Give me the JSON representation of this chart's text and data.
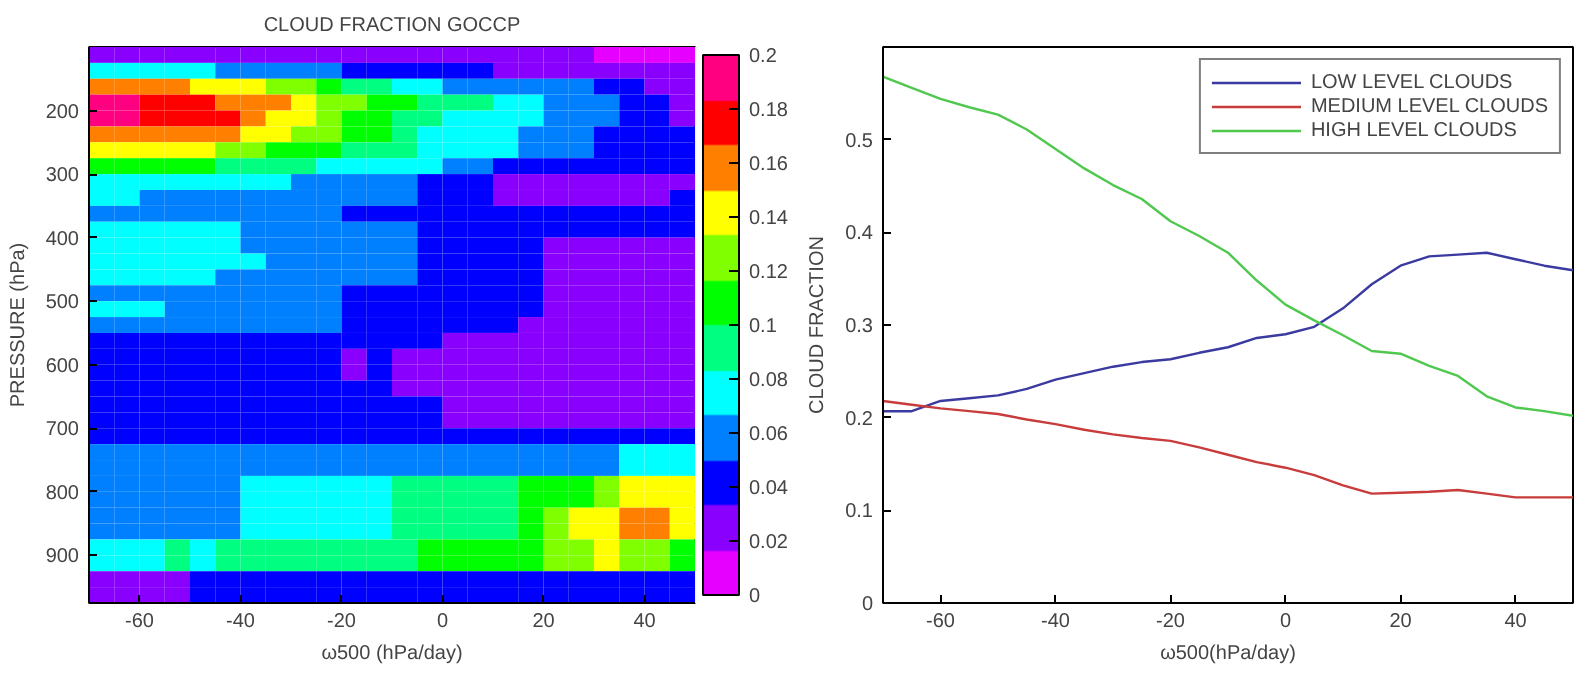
{
  "chart_data": [
    {
      "type": "heatmap",
      "title": "CLOUD FRACTION GOCCP",
      "xlabel": "ω500 (hPa/day)",
      "ylabel": "PRESSURE (hPa)",
      "xlim": [
        -70,
        50
      ],
      "ylim": [
        975,
        100
      ],
      "xticks": [
        -60,
        -40,
        -20,
        0,
        20,
        40
      ],
      "yticks": [
        200,
        300,
        400,
        500,
        600,
        700,
        800,
        900
      ],
      "clim": [
        0,
        0.2
      ],
      "cticks": [
        0,
        0.02,
        0.04,
        0.06,
        0.08,
        0.1,
        0.12,
        0.14,
        0.16,
        0.18,
        0.2
      ],
      "colors": [
        "#e600ff",
        "#8a00ff",
        "#0000ff",
        "#0080ff",
        "#00ffff",
        "#00ff80",
        "#00ff00",
        "#80ff00",
        "#ffff00",
        "#ff8000",
        "#ff0000",
        "#ff0080"
      ],
      "cells": [
        [
          0.025,
          0.025,
          0.025,
          0.025,
          0.025,
          0.025,
          0.025,
          0.025,
          0.025,
          0.025,
          0.025,
          0.025,
          0.025,
          0.025,
          0.025,
          0.025,
          0.025,
          0.025,
          0.025,
          0.025,
          0.01,
          0.01,
          0.01,
          0.01
        ],
        [
          0.075,
          0.075,
          0.075,
          0.075,
          0.075,
          0.06,
          0.06,
          0.06,
          0.06,
          0.06,
          0.04,
          0.04,
          0.04,
          0.04,
          0.04,
          0.04,
          0.025,
          0.025,
          0.025,
          0.025,
          0.025,
          0.025,
          0.025,
          0.025
        ],
        [
          0.16,
          0.16,
          0.16,
          0.16,
          0.14,
          0.14,
          0.14,
          0.125,
          0.125,
          0.11,
          0.09,
          0.09,
          0.075,
          0.075,
          0.06,
          0.06,
          0.06,
          0.06,
          0.06,
          0.06,
          0.04,
          0.04,
          0.025,
          0.025
        ],
        [
          0.19,
          0.19,
          0.175,
          0.175,
          0.175,
          0.16,
          0.16,
          0.16,
          0.14,
          0.125,
          0.125,
          0.11,
          0.11,
          0.09,
          0.09,
          0.09,
          0.075,
          0.075,
          0.06,
          0.06,
          0.06,
          0.04,
          0.04,
          0.025
        ],
        [
          0.19,
          0.19,
          0.175,
          0.175,
          0.175,
          0.175,
          0.16,
          0.14,
          0.14,
          0.125,
          0.11,
          0.11,
          0.09,
          0.09,
          0.075,
          0.075,
          0.075,
          0.075,
          0.06,
          0.06,
          0.06,
          0.04,
          0.04,
          0.025
        ],
        [
          0.16,
          0.16,
          0.16,
          0.16,
          0.16,
          0.16,
          0.14,
          0.14,
          0.125,
          0.125,
          0.11,
          0.11,
          0.09,
          0.075,
          0.075,
          0.075,
          0.075,
          0.06,
          0.06,
          0.06,
          0.04,
          0.04,
          0.04,
          0.04
        ],
        [
          0.14,
          0.14,
          0.14,
          0.14,
          0.14,
          0.125,
          0.125,
          0.11,
          0.11,
          0.11,
          0.09,
          0.09,
          0.09,
          0.075,
          0.075,
          0.075,
          0.075,
          0.06,
          0.06,
          0.06,
          0.04,
          0.04,
          0.04,
          0.04
        ],
        [
          0.11,
          0.11,
          0.11,
          0.11,
          0.11,
          0.09,
          0.09,
          0.09,
          0.09,
          0.075,
          0.075,
          0.075,
          0.075,
          0.075,
          0.06,
          0.06,
          0.04,
          0.04,
          0.04,
          0.04,
          0.04,
          0.04,
          0.04,
          0.04
        ],
        [
          0.075,
          0.075,
          0.075,
          0.075,
          0.075,
          0.075,
          0.075,
          0.075,
          0.06,
          0.06,
          0.06,
          0.06,
          0.06,
          0.04,
          0.04,
          0.04,
          0.025,
          0.025,
          0.025,
          0.025,
          0.025,
          0.025,
          0.025,
          0.025
        ],
        [
          0.075,
          0.075,
          0.06,
          0.06,
          0.06,
          0.06,
          0.06,
          0.06,
          0.06,
          0.06,
          0.06,
          0.06,
          0.06,
          0.04,
          0.04,
          0.04,
          0.025,
          0.025,
          0.025,
          0.025,
          0.025,
          0.025,
          0.025,
          0.04
        ],
        [
          0.06,
          0.06,
          0.06,
          0.06,
          0.06,
          0.06,
          0.06,
          0.06,
          0.06,
          0.06,
          0.04,
          0.04,
          0.04,
          0.04,
          0.04,
          0.04,
          0.04,
          0.04,
          0.04,
          0.04,
          0.04,
          0.04,
          0.04,
          0.04
        ],
        [
          0.075,
          0.075,
          0.075,
          0.075,
          0.075,
          0.075,
          0.06,
          0.06,
          0.06,
          0.06,
          0.06,
          0.06,
          0.06,
          0.04,
          0.04,
          0.04,
          0.04,
          0.04,
          0.04,
          0.04,
          0.04,
          0.04,
          0.04,
          0.04
        ],
        [
          0.075,
          0.075,
          0.075,
          0.075,
          0.075,
          0.075,
          0.06,
          0.06,
          0.06,
          0.06,
          0.06,
          0.06,
          0.06,
          0.04,
          0.04,
          0.04,
          0.04,
          0.04,
          0.025,
          0.025,
          0.025,
          0.025,
          0.025,
          0.025
        ],
        [
          0.075,
          0.075,
          0.075,
          0.075,
          0.075,
          0.075,
          0.075,
          0.06,
          0.06,
          0.06,
          0.06,
          0.06,
          0.06,
          0.04,
          0.04,
          0.04,
          0.04,
          0.04,
          0.025,
          0.025,
          0.025,
          0.025,
          0.025,
          0.025
        ],
        [
          0.075,
          0.075,
          0.075,
          0.075,
          0.075,
          0.06,
          0.06,
          0.06,
          0.06,
          0.06,
          0.06,
          0.06,
          0.06,
          0.04,
          0.04,
          0.04,
          0.04,
          0.04,
          0.025,
          0.025,
          0.025,
          0.025,
          0.025,
          0.025
        ],
        [
          0.06,
          0.06,
          0.06,
          0.06,
          0.06,
          0.06,
          0.06,
          0.06,
          0.06,
          0.06,
          0.04,
          0.04,
          0.04,
          0.04,
          0.04,
          0.04,
          0.04,
          0.04,
          0.025,
          0.025,
          0.025,
          0.025,
          0.025,
          0.025
        ],
        [
          0.075,
          0.075,
          0.075,
          0.06,
          0.06,
          0.06,
          0.06,
          0.06,
          0.06,
          0.06,
          0.04,
          0.04,
          0.04,
          0.04,
          0.04,
          0.04,
          0.04,
          0.04,
          0.025,
          0.025,
          0.025,
          0.025,
          0.025,
          0.025
        ],
        [
          0.06,
          0.06,
          0.06,
          0.06,
          0.06,
          0.06,
          0.06,
          0.06,
          0.06,
          0.06,
          0.04,
          0.04,
          0.04,
          0.04,
          0.04,
          0.04,
          0.04,
          0.025,
          0.025,
          0.025,
          0.025,
          0.025,
          0.025,
          0.025
        ],
        [
          0.04,
          0.04,
          0.04,
          0.04,
          0.04,
          0.04,
          0.04,
          0.04,
          0.04,
          0.04,
          0.04,
          0.04,
          0.04,
          0.04,
          0.025,
          0.025,
          0.025,
          0.025,
          0.025,
          0.025,
          0.025,
          0.025,
          0.025,
          0.025
        ],
        [
          0.04,
          0.04,
          0.04,
          0.04,
          0.04,
          0.04,
          0.04,
          0.04,
          0.04,
          0.04,
          0.025,
          0.04,
          0.025,
          0.025,
          0.025,
          0.025,
          0.025,
          0.025,
          0.025,
          0.025,
          0.025,
          0.025,
          0.025,
          0.025
        ],
        [
          0.04,
          0.04,
          0.04,
          0.04,
          0.04,
          0.04,
          0.04,
          0.04,
          0.04,
          0.04,
          0.025,
          0.04,
          0.025,
          0.025,
          0.025,
          0.025,
          0.025,
          0.025,
          0.025,
          0.025,
          0.025,
          0.025,
          0.025,
          0.025
        ],
        [
          0.04,
          0.04,
          0.04,
          0.04,
          0.04,
          0.04,
          0.04,
          0.04,
          0.04,
          0.04,
          0.04,
          0.04,
          0.025,
          0.025,
          0.025,
          0.025,
          0.025,
          0.025,
          0.025,
          0.025,
          0.025,
          0.025,
          0.025,
          0.025
        ],
        [
          0.04,
          0.04,
          0.04,
          0.04,
          0.04,
          0.04,
          0.04,
          0.04,
          0.04,
          0.04,
          0.04,
          0.04,
          0.04,
          0.04,
          0.025,
          0.025,
          0.025,
          0.025,
          0.025,
          0.025,
          0.025,
          0.025,
          0.025,
          0.025
        ],
        [
          0.04,
          0.04,
          0.04,
          0.04,
          0.04,
          0.04,
          0.04,
          0.04,
          0.04,
          0.04,
          0.04,
          0.04,
          0.04,
          0.04,
          0.025,
          0.025,
          0.025,
          0.025,
          0.025,
          0.025,
          0.025,
          0.025,
          0.025,
          0.025
        ],
        [
          0.04,
          0.04,
          0.04,
          0.04,
          0.04,
          0.04,
          0.04,
          0.04,
          0.04,
          0.04,
          0.04,
          0.04,
          0.04,
          0.04,
          0.04,
          0.04,
          0.04,
          0.04,
          0.04,
          0.04,
          0.04,
          0.04,
          0.04,
          0.04
        ],
        [
          0.06,
          0.06,
          0.06,
          0.06,
          0.06,
          0.06,
          0.06,
          0.06,
          0.06,
          0.06,
          0.06,
          0.06,
          0.06,
          0.06,
          0.06,
          0.06,
          0.06,
          0.06,
          0.06,
          0.06,
          0.06,
          0.075,
          0.075,
          0.075
        ],
        [
          0.06,
          0.06,
          0.06,
          0.06,
          0.06,
          0.06,
          0.06,
          0.06,
          0.06,
          0.06,
          0.06,
          0.06,
          0.06,
          0.06,
          0.06,
          0.06,
          0.06,
          0.06,
          0.06,
          0.06,
          0.06,
          0.075,
          0.075,
          0.075
        ],
        [
          0.06,
          0.06,
          0.06,
          0.06,
          0.06,
          0.06,
          0.075,
          0.075,
          0.075,
          0.075,
          0.075,
          0.075,
          0.09,
          0.09,
          0.09,
          0.09,
          0.09,
          0.11,
          0.11,
          0.11,
          0.125,
          0.14,
          0.14,
          0.14
        ],
        [
          0.06,
          0.06,
          0.06,
          0.06,
          0.06,
          0.06,
          0.075,
          0.075,
          0.075,
          0.075,
          0.075,
          0.075,
          0.09,
          0.09,
          0.09,
          0.09,
          0.09,
          0.11,
          0.11,
          0.11,
          0.125,
          0.14,
          0.14,
          0.14
        ],
        [
          0.06,
          0.06,
          0.06,
          0.06,
          0.06,
          0.06,
          0.075,
          0.075,
          0.075,
          0.075,
          0.075,
          0.075,
          0.09,
          0.09,
          0.09,
          0.09,
          0.09,
          0.11,
          0.125,
          0.14,
          0.14,
          0.16,
          0.16,
          0.14
        ],
        [
          0.06,
          0.06,
          0.06,
          0.06,
          0.06,
          0.06,
          0.075,
          0.075,
          0.075,
          0.075,
          0.075,
          0.075,
          0.09,
          0.09,
          0.09,
          0.09,
          0.09,
          0.11,
          0.125,
          0.14,
          0.14,
          0.16,
          0.16,
          0.14
        ],
        [
          0.075,
          0.075,
          0.075,
          0.09,
          0.075,
          0.09,
          0.09,
          0.09,
          0.09,
          0.09,
          0.09,
          0.09,
          0.09,
          0.11,
          0.11,
          0.11,
          0.11,
          0.11,
          0.125,
          0.125,
          0.14,
          0.125,
          0.125,
          0.11
        ],
        [
          0.075,
          0.075,
          0.075,
          0.09,
          0.075,
          0.09,
          0.09,
          0.09,
          0.09,
          0.09,
          0.09,
          0.09,
          0.09,
          0.11,
          0.11,
          0.11,
          0.11,
          0.11,
          0.125,
          0.125,
          0.14,
          0.125,
          0.125,
          0.11
        ],
        [
          0.025,
          0.025,
          0.025,
          0.025,
          0.04,
          0.04,
          0.04,
          0.04,
          0.04,
          0.04,
          0.04,
          0.04,
          0.04,
          0.04,
          0.04,
          0.04,
          0.04,
          0.04,
          0.04,
          0.04,
          0.04,
          0.04,
          0.04,
          0.04
        ],
        [
          0.025,
          0.025,
          0.025,
          0.025,
          0.04,
          0.04,
          0.04,
          0.04,
          0.04,
          0.04,
          0.04,
          0.04,
          0.04,
          0.04,
          0.04,
          0.04,
          0.04,
          0.04,
          0.04,
          0.04,
          0.04,
          0.04,
          0.04,
          0.04
        ]
      ]
    },
    {
      "type": "line",
      "xlabel": "ω500(hPa/day)",
      "ylabel": "CLOUD FRACTION",
      "xlim": [
        -70,
        50
      ],
      "ylim": [
        0,
        0.6
      ],
      "xticks": [
        -60,
        -40,
        -20,
        0,
        20,
        40
      ],
      "yticks": [
        0,
        0.1,
        0.2,
        0.3,
        0.4,
        0.5
      ],
      "legend": "top right",
      "x": [
        -70,
        -65,
        -60,
        -55,
        -50,
        -45,
        -40,
        -35,
        -30,
        -25,
        -20,
        -15,
        -10,
        -5,
        0,
        5,
        10,
        15,
        20,
        25,
        30,
        35,
        40,
        45,
        50
      ],
      "series": [
        {
          "name": "LOW LEVEL CLOUDS",
          "color": "#3a3aa0",
          "values": [
            0.207,
            0.207,
            0.218,
            0.221,
            0.224,
            0.231,
            0.241,
            0.248,
            0.255,
            0.26,
            0.263,
            0.27,
            0.276,
            0.286,
            0.29,
            0.298,
            0.318,
            0.344,
            0.364,
            0.374,
            0.376,
            0.378,
            0.371,
            0.364,
            0.359
          ]
        },
        {
          "name": "MEDIUM LEVEL CLOUDS",
          "color": "#c83c3c",
          "values": [
            0.218,
            0.214,
            0.21,
            0.207,
            0.204,
            0.198,
            0.193,
            0.187,
            0.182,
            0.178,
            0.175,
            0.168,
            0.16,
            0.152,
            0.146,
            0.138,
            0.127,
            0.118,
            0.119,
            0.12,
            0.122,
            0.118,
            0.114,
            0.114,
            0.114
          ]
        },
        {
          "name": "HIGH LEVEL CLOUDS",
          "color": "#50c850",
          "values": [
            0.568,
            0.556,
            0.544,
            0.535,
            0.527,
            0.511,
            0.49,
            0.469,
            0.451,
            0.436,
            0.412,
            0.396,
            0.378,
            0.348,
            0.322,
            0.305,
            0.289,
            0.272,
            0.269,
            0.256,
            0.245,
            0.223,
            0.211,
            0.207,
            0.202
          ]
        }
      ]
    }
  ]
}
